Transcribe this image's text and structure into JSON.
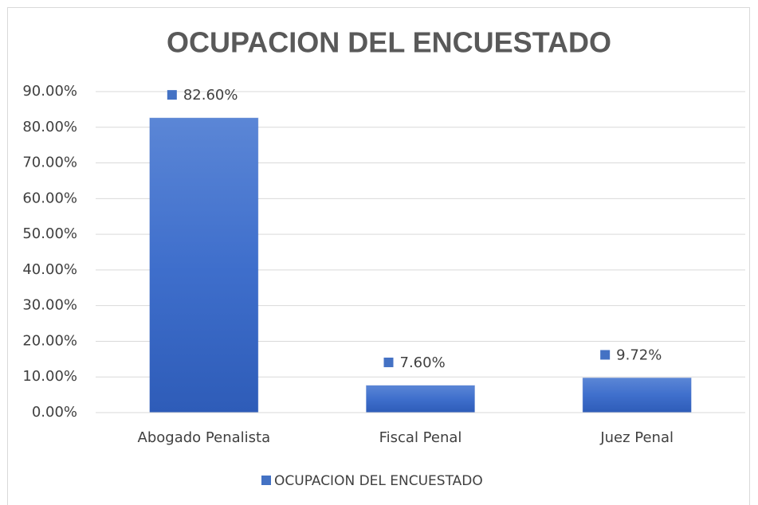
{
  "chart_data": {
    "type": "bar",
    "title": "OCUPACION DEL ENCUESTADO",
    "categories": [
      "Abogado Penalista",
      "Fiscal Penal",
      "Juez Penal"
    ],
    "series": [
      {
        "name": "OCUPACION DEL ENCUESTADO",
        "color": "#4472c4",
        "values": [
          82.6,
          7.6,
          9.72
        ],
        "value_labels": [
          "82.60%",
          "7.60%",
          "9.72%"
        ]
      }
    ],
    "ylim": [
      0,
      90
    ],
    "yticks": [
      {
        "value": 0,
        "label": "0.00%"
      },
      {
        "value": 10,
        "label": "10.00%"
      },
      {
        "value": 20,
        "label": "20.00%"
      },
      {
        "value": 30,
        "label": "30.00%"
      },
      {
        "value": 40,
        "label": "40.00%"
      },
      {
        "value": 50,
        "label": "50.00%"
      },
      {
        "value": 60,
        "label": "60.00%"
      },
      {
        "value": 70,
        "label": "70.00%"
      },
      {
        "value": 80,
        "label": "80.00%"
      },
      {
        "value": 90,
        "label": "90.00%"
      }
    ],
    "grid": true,
    "legend": "bottom"
  }
}
